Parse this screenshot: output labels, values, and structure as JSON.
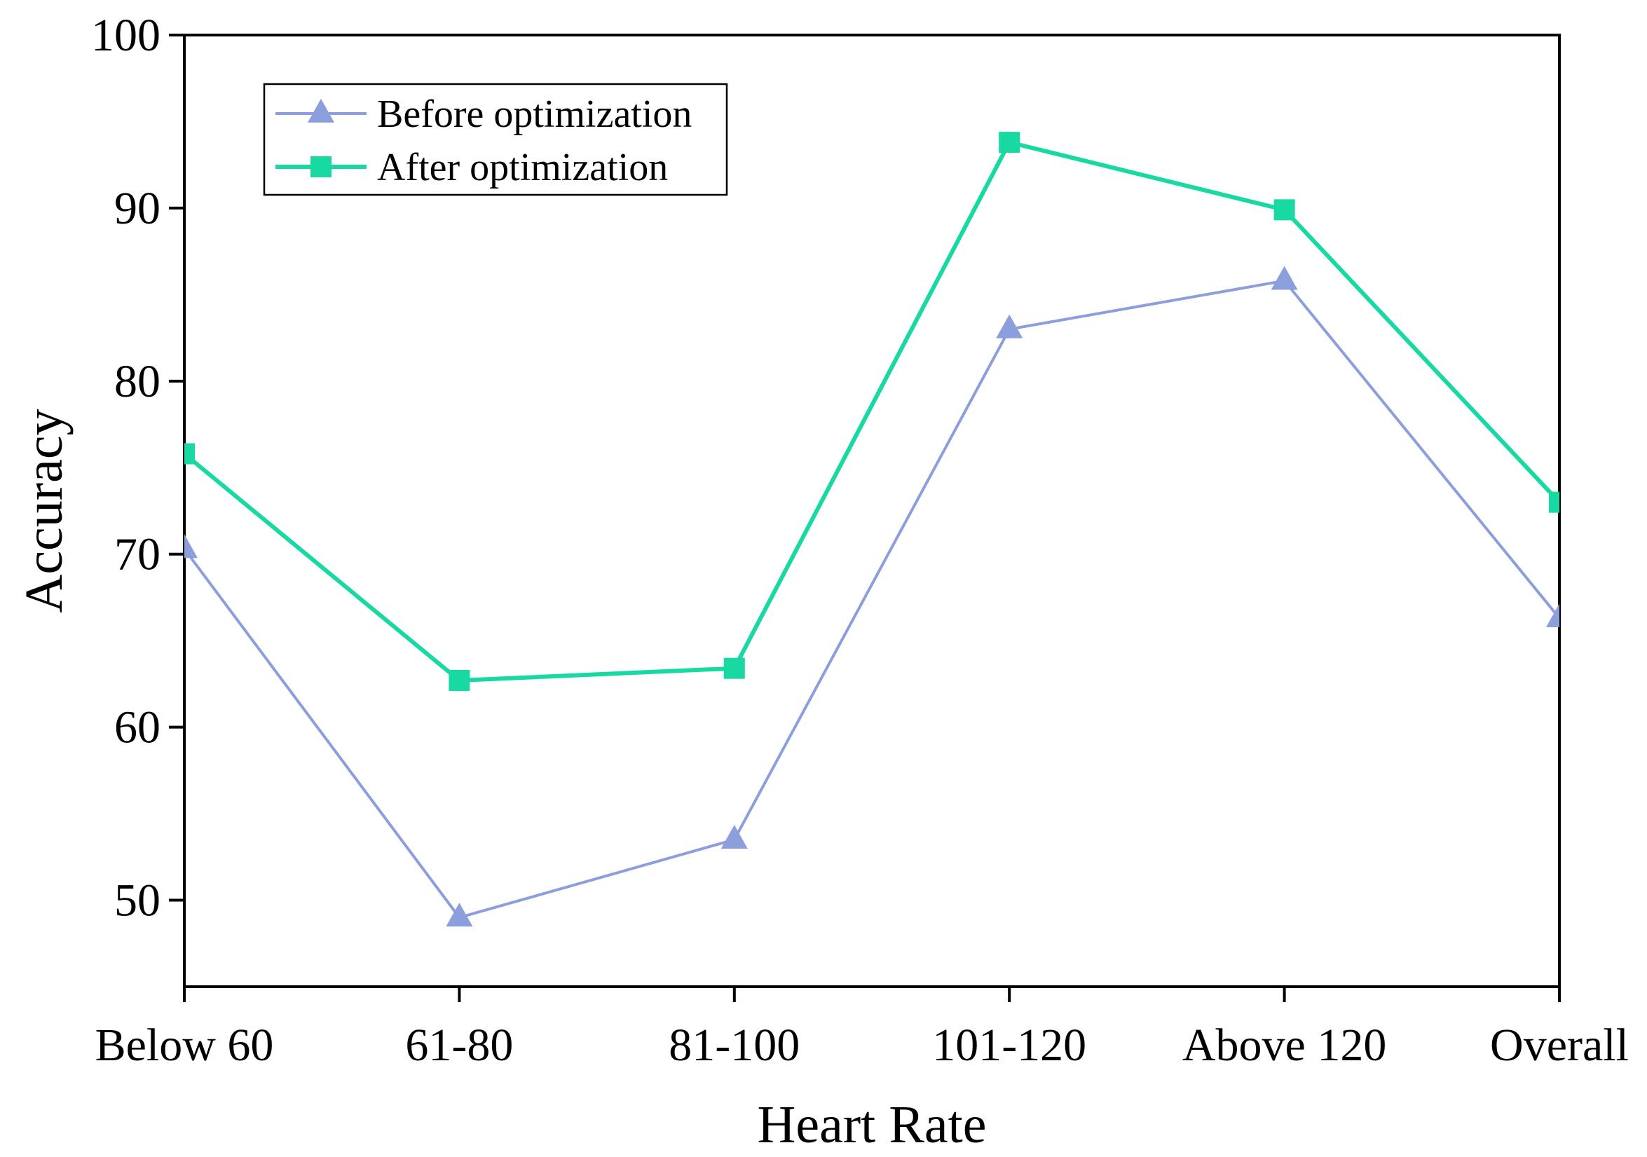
{
  "chart_data": {
    "type": "line",
    "title": "",
    "xlabel": "Heart Rate",
    "ylabel": "Accuracy",
    "categories": [
      "Below 60",
      "61-80",
      "81-100",
      "101-120",
      "Above 120",
      "Overall"
    ],
    "ylim": [
      45,
      100
    ],
    "yticks": [
      50,
      60,
      70,
      80,
      90,
      100
    ],
    "ytick_labels": [
      "50",
      "60",
      "70",
      "80",
      "90",
      "100"
    ],
    "grid": false,
    "legend_position": "top-left",
    "series": [
      {
        "name": "Before optimization",
        "marker": "triangle",
        "color": "#8c9edb",
        "values": [
          70.3,
          49.0,
          53.5,
          83.0,
          85.8,
          66.3
        ]
      },
      {
        "name": "After optimization",
        "marker": "square",
        "color": "#19d9a3",
        "values": [
          75.8,
          62.7,
          63.4,
          93.8,
          89.9,
          73.0
        ]
      }
    ]
  }
}
